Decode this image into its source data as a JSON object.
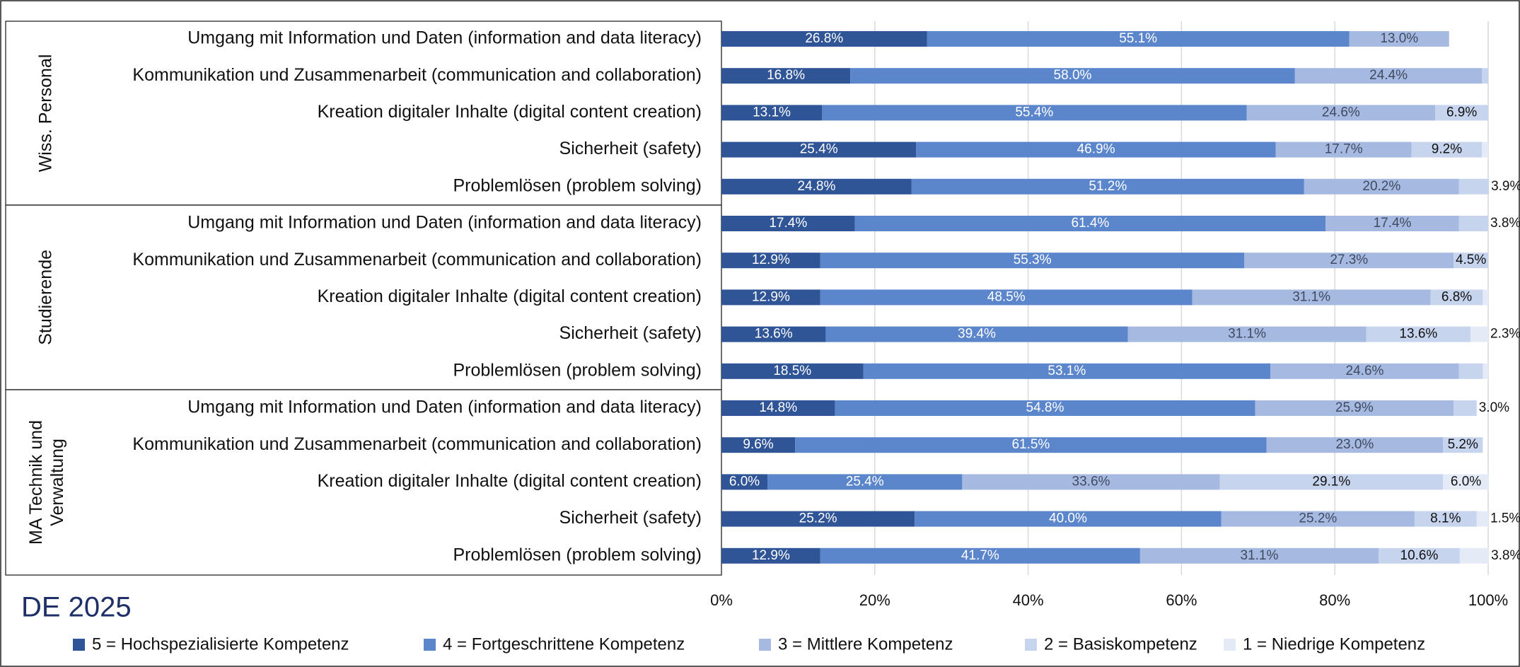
{
  "chart_data": {
    "type": "bar",
    "orientation": "horizontal",
    "stacked": true,
    "title": "DE 2025",
    "groups": [
      {
        "name": "Wiss. Personal",
        "categories": [
          "Umgang mit Information und Daten (information and data literacy)",
          "Kommunikation und Zusammenarbeit (communication and collaboration)",
          "Kreation digitaler Inhalte (digital content creation)",
          "Sicherheit (safety)",
          "Problemlösen (problem solving)"
        ]
      },
      {
        "name": "Studierende",
        "categories": [
          "Umgang mit Information und Daten (information and data literacy)",
          "Kommunikation und Zusammenarbeit (communication and collaboration)",
          "Kreation digitaler Inhalte (digital content creation)",
          "Sicherheit (safety)",
          "Problemlösen (problem solving)"
        ]
      },
      {
        "name": "MA Technik und Verwaltung",
        "categories": [
          "Umgang mit Information und Daten (information and data literacy)",
          "Kommunikation und Zusammenarbeit (communication and collaboration)",
          "Kreation digitaler Inhalte (digital content creation)",
          "Sicherheit (safety)",
          "Problemlösen (problem solving)"
        ]
      }
    ],
    "series": [
      {
        "name": "5 = Hochspezialisierte Kompetenz",
        "color": "#2f5597",
        "label_color": "#ffffff",
        "values": [
          26.8,
          16.8,
          13.1,
          25.4,
          24.8,
          17.4,
          12.9,
          12.9,
          13.6,
          18.5,
          14.8,
          9.6,
          6.0,
          25.2,
          12.9
        ],
        "value_labels": [
          "26.8%",
          "16.8%",
          "13.1%",
          "25.4%",
          "24.8%",
          "17.4%",
          "12.9%",
          "12.9%",
          "13.6%",
          "18.5%",
          "14.8%",
          "9.6%",
          "6.0%",
          "25.2%",
          "12.9%"
        ]
      },
      {
        "name": "4 = Fortgeschrittene Kompetenz",
        "color": "#5b86cc",
        "label_color": "#ffffff",
        "values": [
          55.1,
          58.0,
          55.4,
          46.9,
          51.2,
          61.4,
          55.3,
          48.5,
          39.4,
          53.1,
          54.8,
          61.5,
          25.4,
          40.0,
          41.7
        ],
        "value_labels": [
          "55.1%",
          "58.0%",
          "55.4%",
          "46.9%",
          "51.2%",
          "61.4%",
          "55.3%",
          "48.5%",
          "39.4%",
          "53.1%",
          "54.8%",
          "61.5%",
          "25.4%",
          "40.0%",
          "41.7%"
        ]
      },
      {
        "name": "3 = Mittlere Kompetenz",
        "color": "#a5b9e1",
        "label_color": "#404a60",
        "values": [
          13.0,
          24.4,
          24.6,
          17.7,
          20.2,
          17.4,
          27.3,
          31.1,
          31.1,
          24.6,
          25.9,
          23.0,
          33.6,
          25.2,
          31.1
        ],
        "value_labels": [
          "13.0%",
          "24.4%",
          "24.6%",
          "17.7%",
          "20.2%",
          "17.4%",
          "27.3%",
          "31.1%",
          "31.1%",
          "24.6%",
          "25.9%",
          "23.0%",
          "33.6%",
          "25.2%",
          "31.1%"
        ]
      },
      {
        "name": "2 = Basiskompetenz",
        "color": "#c7d4ee",
        "label_color": "#111111",
        "values": [
          null,
          0.8,
          6.9,
          9.2,
          3.9,
          3.8,
          4.5,
          6.8,
          13.6,
          3.1,
          3.0,
          5.2,
          29.1,
          8.1,
          10.6
        ],
        "value_labels": [
          null,
          null,
          "6.9%",
          "9.2%",
          "3.9%",
          "3.8%",
          "4.5%",
          "6.8%",
          "13.6%",
          null,
          "3.0%",
          "5.2%",
          "29.1%",
          "8.1%",
          "10.6%"
        ]
      },
      {
        "name": "1 = Niedrige Kompetenz",
        "color": "#e4ebf7",
        "label_color": "#111111",
        "values": [
          null,
          null,
          null,
          0.8,
          null,
          null,
          null,
          0.7,
          2.3,
          0.7,
          null,
          null,
          6.0,
          1.5,
          3.8
        ],
        "value_labels": [
          null,
          null,
          null,
          null,
          null,
          null,
          null,
          null,
          "2.3%",
          null,
          null,
          null,
          "6.0%",
          "1.5%",
          "3.8%"
        ]
      }
    ],
    "xlim": [
      0,
      100
    ],
    "xticks": [
      {
        "value": 0,
        "label": "0%"
      },
      {
        "value": 20,
        "label": "20%"
      },
      {
        "value": 40,
        "label": "40%"
      },
      {
        "value": 60,
        "label": "60%"
      },
      {
        "value": 80,
        "label": "80%"
      },
      {
        "value": 100,
        "label": "100%"
      }
    ],
    "grid": true,
    "legend": "bottom"
  }
}
